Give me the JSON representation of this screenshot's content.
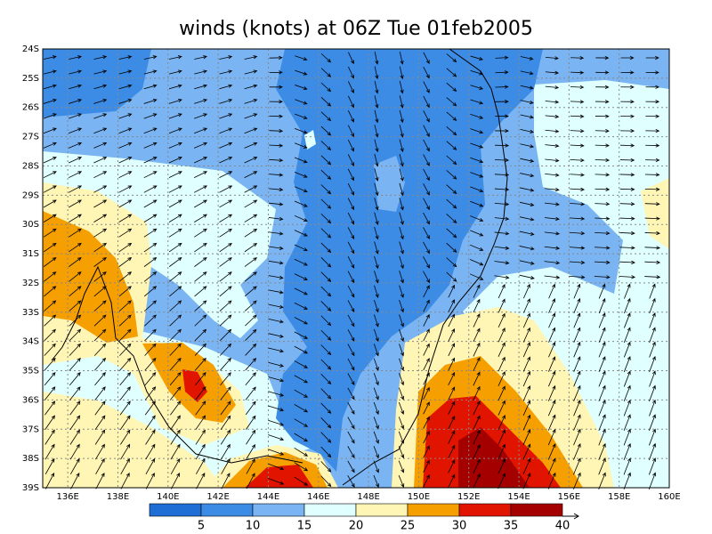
{
  "map": {
    "title": "winds (knots) at 06Z Tue 01feb2005",
    "xlim": [
      135,
      160
    ],
    "ylim": [
      -39,
      -24
    ],
    "xticks": [
      {
        "value": 136,
        "label": "136E"
      },
      {
        "value": 138,
        "label": "138E"
      },
      {
        "value": 140,
        "label": "140E"
      },
      {
        "value": 142,
        "label": "142E"
      },
      {
        "value": 144,
        "label": "144E"
      },
      {
        "value": 146,
        "label": "146E"
      },
      {
        "value": 148,
        "label": "148E"
      },
      {
        "value": 150,
        "label": "150E"
      },
      {
        "value": 152,
        "label": "152E"
      },
      {
        "value": 154,
        "label": "154E"
      },
      {
        "value": 156,
        "label": "156E"
      },
      {
        "value": 158,
        "label": "158E"
      },
      {
        "value": 160,
        "label": "160E"
      }
    ],
    "yticks": [
      {
        "value": -24,
        "label": "24S"
      },
      {
        "value": -25,
        "label": "25S"
      },
      {
        "value": -26,
        "label": "26S"
      },
      {
        "value": -27,
        "label": "27S"
      },
      {
        "value": -28,
        "label": "28S"
      },
      {
        "value": -29,
        "label": "29S"
      },
      {
        "value": -30,
        "label": "30S"
      },
      {
        "value": -31,
        "label": "31S"
      },
      {
        "value": -32,
        "label": "32S"
      },
      {
        "value": -33,
        "label": "33S"
      },
      {
        "value": -34,
        "label": "34S"
      },
      {
        "value": -35,
        "label": "35S"
      },
      {
        "value": -36,
        "label": "36S"
      },
      {
        "value": -37,
        "label": "37S"
      },
      {
        "value": -38,
        "label": "38S"
      },
      {
        "value": -39,
        "label": "39S"
      }
    ],
    "colorbar": {
      "levels": [
        5,
        10,
        15,
        20,
        25,
        30,
        35,
        40
      ],
      "colors": [
        "#1e6ed6",
        "#3c8ce6",
        "#7ab4f2",
        "#e0ffff",
        "#fff5b4",
        "#f5a000",
        "#e11400",
        "#a50000"
      ]
    }
  }
}
